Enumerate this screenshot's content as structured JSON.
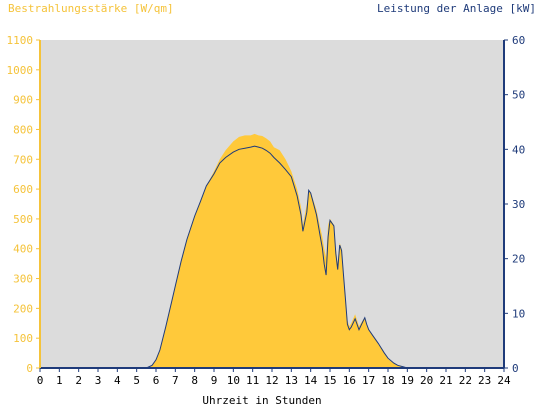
{
  "chart_data": {
    "type": "area",
    "title_left": "Bestrahlungsstärke [W/qm]",
    "title_right": "Leistung der Anlage [kW]",
    "xlabel": "Uhrzeit in Stunden",
    "xlim": [
      0,
      24
    ],
    "x_ticks": [
      "0",
      "1",
      "2",
      "3",
      "4",
      "5",
      "6",
      "7",
      "8",
      "9",
      "10",
      "11",
      "12",
      "13",
      "14",
      "15",
      "16",
      "17",
      "18",
      "19",
      "20",
      "21",
      "22",
      "23",
      "24"
    ],
    "y_left": {
      "lim": [
        0,
        1100
      ],
      "ticks": [
        "0",
        "100",
        "200",
        "300",
        "400",
        "500",
        "600",
        "700",
        "800",
        "900",
        "1000",
        "1100"
      ]
    },
    "y_right": {
      "lim": [
        0,
        60
      ],
      "ticks": [
        "0",
        "10",
        "20",
        "30",
        "40",
        "50",
        "60"
      ]
    },
    "grid": false,
    "plot_background": "#dcdcdc",
    "series": [
      {
        "axis": "left",
        "kind": "area",
        "color": "#ffc93a",
        "x": [
          5.5,
          5.8,
          6.0,
          6.2,
          6.5,
          6.8,
          7.0,
          7.3,
          7.6,
          8.0,
          8.3,
          8.6,
          9.0,
          9.3,
          9.6,
          10.0,
          10.3,
          10.6,
          10.9,
          11.1,
          11.3,
          11.5,
          11.7,
          11.9,
          12.1,
          12.4,
          12.7,
          13.0,
          13.3,
          13.5,
          13.6,
          13.8,
          13.9,
          14.0,
          14.15,
          14.3,
          14.5,
          14.6,
          14.7,
          14.8,
          14.9,
          15.0,
          15.2,
          15.3,
          15.4,
          15.5,
          15.6,
          15.7,
          15.8,
          15.9,
          16.0,
          16.1,
          16.3,
          16.5,
          16.7,
          16.8,
          16.9,
          17.0,
          17.2,
          17.5,
          17.8,
          18.0,
          18.3,
          18.5,
          18.8,
          19.0,
          19.2
        ],
        "y": [
          0,
          10,
          30,
          60,
          140,
          220,
          270,
          360,
          430,
          510,
          560,
          610,
          660,
          700,
          730,
          760,
          775,
          780,
          780,
          785,
          780,
          778,
          770,
          760,
          740,
          730,
          700,
          660,
          600,
          540,
          480,
          550,
          590,
          590,
          560,
          530,
          470,
          440,
          400,
          370,
          480,
          500,
          480,
          400,
          350,
          420,
          400,
          320,
          230,
          160,
          140,
          150,
          180,
          140,
          160,
          170,
          140,
          130,
          110,
          80,
          50,
          30,
          15,
          8,
          3,
          0,
          0
        ]
      },
      {
        "axis": "right",
        "kind": "line",
        "color": "#1f3b7a",
        "x": [
          5.5,
          5.8,
          6.0,
          6.2,
          6.5,
          6.8,
          7.0,
          7.3,
          7.6,
          8.0,
          8.3,
          8.6,
          9.0,
          9.3,
          9.6,
          10.0,
          10.3,
          10.6,
          10.9,
          11.1,
          11.3,
          11.5,
          11.7,
          11.9,
          12.1,
          12.4,
          12.7,
          13.0,
          13.3,
          13.5,
          13.6,
          13.8,
          13.9,
          14.0,
          14.15,
          14.3,
          14.5,
          14.6,
          14.7,
          14.8,
          14.9,
          15.0,
          15.2,
          15.3,
          15.4,
          15.5,
          15.6,
          15.7,
          15.8,
          15.9,
          16.0,
          16.1,
          16.3,
          16.5,
          16.7,
          16.8,
          16.9,
          17.0,
          17.2,
          17.5,
          17.8,
          18.0,
          18.3,
          18.5,
          18.8,
          19.0,
          19.2
        ],
        "y": [
          0,
          0.5,
          1.5,
          3.3,
          7.5,
          12,
          15,
          19.5,
          23.5,
          27.8,
          30.5,
          33.3,
          35.5,
          37.5,
          38.5,
          39.5,
          40.0,
          40.2,
          40.4,
          40.6,
          40.4,
          40.2,
          39.8,
          39.3,
          38.5,
          37.5,
          36.3,
          35.0,
          31.5,
          28.0,
          25.0,
          28.5,
          32.5,
          32.0,
          30.0,
          28.0,
          24.0,
          22.0,
          19.0,
          17.0,
          24.0,
          27.0,
          26.0,
          21.0,
          18.0,
          22.5,
          21.5,
          17.0,
          12.5,
          8.0,
          7.0,
          7.5,
          9.0,
          7.0,
          8.5,
          9.2,
          8.0,
          7.0,
          6.0,
          4.5,
          2.8,
          1.8,
          0.9,
          0.5,
          0.2,
          0,
          0
        ]
      }
    ]
  }
}
